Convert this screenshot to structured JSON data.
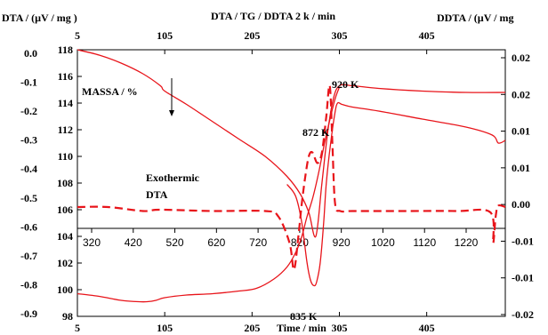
{
  "chart_data": {
    "type": "line",
    "title": "DTA / TG / DDTA 2 k / min",
    "left_axis_title": "DTA / (µV / mg )",
    "right_axis_title": "DDTA / (µV / mg",
    "xlabel": "Time / min",
    "top_x_ticks": [
      "5",
      "105",
      "205",
      "305",
      "405"
    ],
    "bottom_x_ticks": [
      "5",
      "105",
      "205",
      "305",
      "405"
    ],
    "inner_temperature_ticks": [
      "320",
      "420",
      "520",
      "620",
      "720",
      "820",
      "920",
      "1020",
      "1120",
      "1220"
    ],
    "left_dta_ticks": [
      "0.0",
      "-0.1",
      "-0.2",
      "-0.3",
      "-0.4",
      "-0.5",
      "-0.6",
      "-0.7",
      "-0.8",
      "-0.9"
    ],
    "left_mass_ticks": [
      "118",
      "116",
      "114",
      "112",
      "110",
      "108",
      "106",
      "104",
      "102",
      "100",
      "98"
    ],
    "right_ddta_ticks": [
      "0.02",
      "0.02",
      "0.01",
      "0.01",
      "0.00",
      "-0.01",
      "-0.01",
      "-0.02"
    ],
    "xlim": [
      5,
      495
    ],
    "mass_ylim": [
      98,
      118
    ],
    "annotations": {
      "mass": "MASSA / %",
      "exo_line1": "Exothermic",
      "exo_line2": "DTA",
      "peak_920": "920 K",
      "peak_872": "872 K",
      "peak_835": "835 K"
    },
    "series": [
      {
        "label": "TG (upper)",
        "style": "solid",
        "x": [
          5,
          30,
          55,
          80,
          100,
          105,
          130,
          160,
          190,
          220,
          245,
          260,
          270,
          278,
          285,
          292,
          298,
          305,
          320,
          350,
          400,
          450,
          495
        ],
        "y": [
          118.0,
          117.6,
          117.0,
          116.2,
          115.3,
          114.9,
          113.9,
          112.6,
          111.3,
          110.0,
          108.5,
          107.2,
          105.8,
          104.0,
          108.0,
          112.0,
          114.3,
          115.3,
          115.3,
          115.1,
          114.9,
          114.8,
          114.8
        ]
      },
      {
        "label": "TG (lower)",
        "style": "solid",
        "x": [
          5,
          30,
          55,
          75,
          85,
          95,
          105,
          130,
          160,
          190,
          210,
          230,
          245,
          255,
          262,
          268,
          275,
          282,
          288,
          295,
          300,
          305
        ],
        "y": [
          99.7,
          99.5,
          99.2,
          99.1,
          99.1,
          99.2,
          99.4,
          99.6,
          99.7,
          99.9,
          100.1,
          100.8,
          101.7,
          102.8,
          104.0,
          105.5,
          107.0,
          109.0,
          111.0,
          113.0,
          114.3,
          115.2
        ]
      },
      {
        "label": "DTA",
        "style": "solid",
        "x": [
          245,
          255,
          262,
          268,
          272,
          276,
          279,
          283,
          287,
          290,
          295,
          300,
          303,
          308,
          320,
          350,
          400,
          450,
          480,
          487,
          495
        ],
        "y": [
          107.9,
          107.0,
          105.0,
          102.0,
          100.7,
          100.3,
          100.6,
          102.0,
          105.0,
          108.0,
          111.0,
          113.3,
          114.0,
          113.9,
          113.7,
          113.4,
          112.8,
          112.2,
          111.6,
          111.0,
          111.2
        ]
      },
      {
        "label": "DDTA",
        "style": "dashed",
        "x": [
          5,
          40,
          80,
          100,
          160,
          220,
          235,
          248,
          253,
          258,
          262,
          266,
          270,
          274,
          280,
          285,
          290,
          294,
          297,
          300,
          306,
          320,
          380,
          440,
          478,
          481,
          484,
          487,
          495
        ],
        "y": [
          106.2,
          106.2,
          105.9,
          106.0,
          105.9,
          105.9,
          105.5,
          103.5,
          101.5,
          104.0,
          106.5,
          108.5,
          110.0,
          110.3,
          109.5,
          110.3,
          113.0,
          115.3,
          111.0,
          106.5,
          105.9,
          105.9,
          105.9,
          105.9,
          105.8,
          103.5,
          105.5,
          106.3,
          106.2
        ]
      }
    ]
  }
}
